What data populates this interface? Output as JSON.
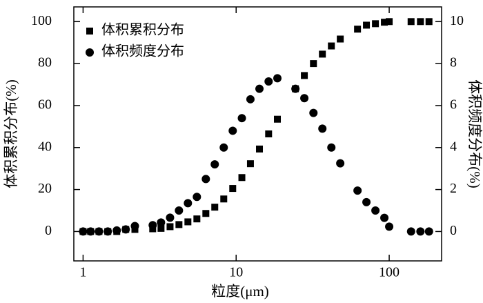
{
  "chart_data": {
    "type": "scatter",
    "xlabel": "粒度(μm)",
    "ylabel": "体积累积分布(%)",
    "y2label": "体积频度分布(%)",
    "xscale": "log",
    "xlim": [
      0.87,
      220
    ],
    "xticks": [
      1,
      10,
      100
    ],
    "ylim": [
      -14,
      107
    ],
    "yticks": [
      0,
      20,
      40,
      60,
      80,
      100
    ],
    "y2lim": [
      -1.4,
      10.7
    ],
    "y2ticks": [
      0,
      2,
      4,
      6,
      8,
      10
    ],
    "legend": "upper left",
    "x": [
      1.0,
      1.12,
      1.27,
      1.45,
      1.66,
      1.9,
      2.18,
      2.85,
      3.23,
      3.7,
      4.23,
      4.84,
      5.54,
      6.34,
      7.25,
      8.3,
      9.5,
      10.9,
      12.4,
      14.2,
      16.3,
      18.6,
      24.4,
      27.9,
      32.0,
      36.6,
      41.9,
      47.9,
      62.1,
      71.0,
      81.3,
      93.0,
      100,
      139,
      160,
      182
    ],
    "series": [
      {
        "name": "体积累积分布",
        "marker": "square",
        "color": "#000000",
        "axis": "y",
        "values": [
          0,
          0,
          0,
          0,
          0,
          1,
          1,
          1.3,
          1.5,
          2.3,
          3.3,
          4.6,
          6,
          8.6,
          11.6,
          15.5,
          20.5,
          25.7,
          32.3,
          39.3,
          46.5,
          53.5,
          68,
          74.3,
          80,
          84.5,
          88.4,
          91.7,
          96.4,
          98.3,
          99,
          99.7,
          100,
          100,
          100,
          100
        ]
      },
      {
        "name": "体积频度分布",
        "marker": "circle",
        "color": "#000000",
        "axis": "y2",
        "values": [
          0,
          0,
          0,
          0,
          0.05,
          0.1,
          0.26,
          0.3,
          0.43,
          0.66,
          1.0,
          1.35,
          1.65,
          2.5,
          3.2,
          4.0,
          4.8,
          5.4,
          6.3,
          6.8,
          7.15,
          7.3,
          6.8,
          6.35,
          5.65,
          4.9,
          4.0,
          3.25,
          1.95,
          1.4,
          1.0,
          0.65,
          0.23,
          0,
          0,
          0
        ]
      }
    ]
  }
}
